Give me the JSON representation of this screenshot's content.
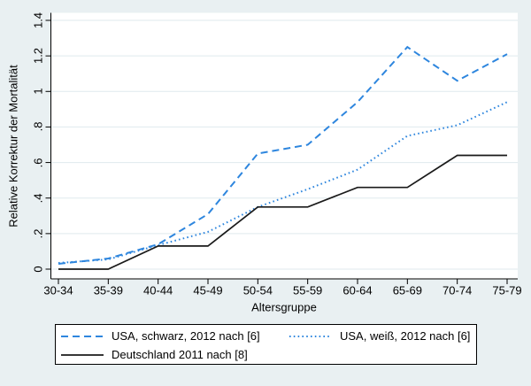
{
  "figure": {
    "background": "#e9f0f2",
    "plot_background": "#ffffff",
    "grid_color": "#dfeaee",
    "axis_color": "#000000",
    "accent_blue": "#2e86de",
    "line_black": "#1a1a1a"
  },
  "chart_data": {
    "type": "line",
    "title": "",
    "xlabel": "Altersgruppe",
    "ylabel": "Relative Korrektur der Mortalität",
    "categories": [
      "30-34",
      "35-39",
      "40-44",
      "45-49",
      "50-54",
      "55-59",
      "60-64",
      "65-69",
      "70-74",
      "75-79"
    ],
    "ylim": [
      0,
      1.4
    ],
    "yticks": {
      "values": [
        0,
        0.2,
        0.4,
        0.6,
        0.8,
        1.0,
        1.2,
        1.4
      ],
      "labels": [
        "0",
        ".2",
        ".4",
        ".6",
        ".8",
        "1",
        "1.2",
        "1.4"
      ]
    },
    "grid": "horizontal",
    "legend_position": "bottom",
    "series": [
      {
        "id": "usa-schwarz-2012",
        "name": "USA, schwarz, 2012 nach [6]",
        "style": "dash",
        "color": "#2e86de",
        "values": [
          0.03,
          0.06,
          0.14,
          0.31,
          0.65,
          0.7,
          0.94,
          1.25,
          1.06,
          1.21
        ]
      },
      {
        "id": "usa-weiss-2012",
        "name": "USA, weiß, 2012 nach [6]",
        "style": "dot",
        "color": "#2e86de",
        "values": [
          0.035,
          0.055,
          0.135,
          0.21,
          0.35,
          0.45,
          0.56,
          0.75,
          0.81,
          0.94
        ]
      },
      {
        "id": "deutschland-2011",
        "name": "Deutschland 2011 nach [8]",
        "style": "solid",
        "color": "#1a1a1a",
        "values": [
          0.0,
          0.0,
          0.13,
          0.13,
          0.35,
          0.35,
          0.46,
          0.46,
          0.64,
          0.64
        ]
      }
    ]
  }
}
